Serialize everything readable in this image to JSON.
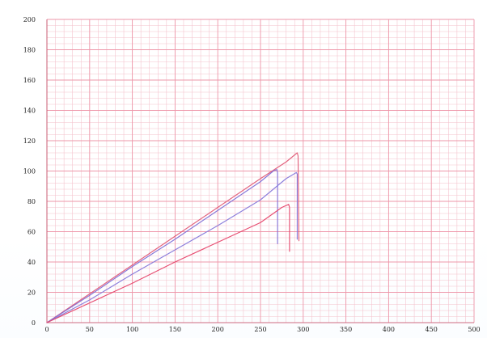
{
  "chart_data": {
    "type": "line",
    "title": "",
    "xlabel": "",
    "ylabel": "",
    "xlim": [
      0,
      500
    ],
    "ylim": [
      0,
      200
    ],
    "x_ticks": [
      0,
      50,
      100,
      150,
      200,
      250,
      300,
      350,
      400,
      450,
      500
    ],
    "y_ticks": [
      0,
      20,
      40,
      60,
      80,
      100,
      120,
      140,
      160,
      180,
      200
    ],
    "x_tick_labels": [
      "0",
      "50",
      "100",
      "150",
      "200",
      "250",
      "300",
      "350",
      "400",
      "450",
      "500"
    ],
    "y_tick_labels": [
      "0",
      "20",
      "40",
      "60",
      "80",
      "100",
      "120",
      "140",
      "160",
      "180",
      "200"
    ],
    "grid": true,
    "legend": "none",
    "series": [
      {
        "color": "#e05a76",
        "points": [
          [
            0,
            0
          ],
          [
            50,
            19
          ],
          [
            100,
            38
          ],
          [
            150,
            57
          ],
          [
            200,
            76
          ],
          [
            250,
            95
          ],
          [
            280,
            106
          ],
          [
            293,
            112
          ],
          [
            294,
            110
          ],
          [
            295,
            54
          ]
        ]
      },
      {
        "color": "#7f6fd6",
        "points": [
          [
            0,
            0
          ],
          [
            50,
            18
          ],
          [
            100,
            37
          ],
          [
            150,
            55
          ],
          [
            200,
            74
          ],
          [
            250,
            93
          ],
          [
            265,
            100
          ],
          [
            269,
            101
          ],
          [
            270,
            99
          ],
          [
            270,
            52
          ]
        ]
      },
      {
        "color": "#8678da",
        "points": [
          [
            0,
            0
          ],
          [
            50,
            15
          ],
          [
            100,
            32
          ],
          [
            150,
            48
          ],
          [
            200,
            64
          ],
          [
            250,
            81
          ],
          [
            280,
            95
          ],
          [
            292,
            99
          ],
          [
            293,
            98
          ],
          [
            293,
            55
          ]
        ]
      },
      {
        "color": "#e6456a",
        "points": [
          [
            0,
            0
          ],
          [
            50,
            13
          ],
          [
            100,
            26
          ],
          [
            150,
            40
          ],
          [
            200,
            53
          ],
          [
            250,
            66
          ],
          [
            275,
            76
          ],
          [
            283,
            78
          ],
          [
            284,
            76
          ],
          [
            284,
            47
          ]
        ]
      }
    ]
  }
}
